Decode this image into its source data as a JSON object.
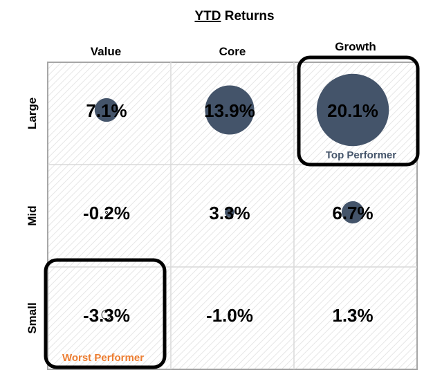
{
  "chart_data": {
    "type": "bubble-grid",
    "title": "YTD Returns",
    "title_underlined_word": "YTD",
    "title_rest": " Returns",
    "columns": [
      "Value",
      "Core",
      "Growth"
    ],
    "rows": [
      "Large",
      "Mid",
      "Small"
    ],
    "values": [
      [
        7.1,
        13.9,
        20.1
      ],
      [
        -0.2,
        3.3,
        6.7
      ],
      [
        -3.3,
        -1.0,
        1.3
      ]
    ],
    "labels": [
      [
        "7.1%",
        "13.9%",
        "20.1%"
      ],
      [
        "-0.2%",
        "3.3%",
        "6.7%"
      ],
      [
        "-3.3%",
        "-1.0%",
        "1.3%"
      ]
    ],
    "bubble_color": "#44546a",
    "highlights": [
      {
        "row": 0,
        "col": 2,
        "label": "Top Performer",
        "color": "#44546a"
      },
      {
        "row": 2,
        "col": 0,
        "label": "Worst Performer",
        "color": "#ed7d31"
      }
    ]
  }
}
